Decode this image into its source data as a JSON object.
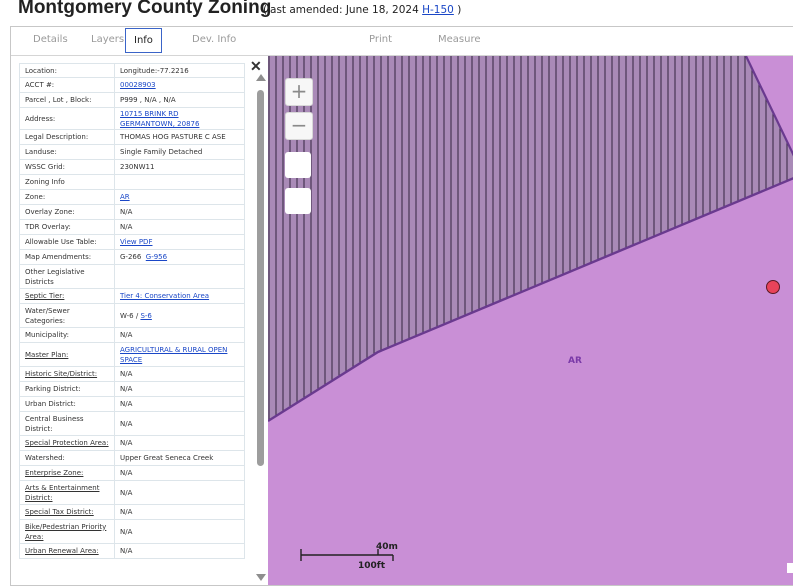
{
  "header": {
    "title": "Montgomery County Zoning",
    "amended_prefix": "(last amended: June 18, 2024",
    "amended_link": "H-150",
    "amended_suffix": ")"
  },
  "tabs": {
    "details": "Details",
    "layers": "Layers",
    "info": "Info",
    "devinfo": "Dev. Info",
    "print": "Print",
    "measure": "Measure"
  },
  "panel": {
    "close": "✕",
    "rows": [
      {
        "k": "Location:",
        "v": "Longitude:-77.2216",
        "link": false
      },
      {
        "k": "ACCT #:",
        "v": "00028903",
        "link": true
      },
      {
        "k": "Parcel , Lot , Block:",
        "v": "P999 , N/A , N/A",
        "link": false
      },
      {
        "k": "Address:",
        "v": "10715 BRINK RD\nGERMANTOWN, 20876",
        "link": true
      },
      {
        "k": "Legal Description:",
        "v": "THOMAS HOG PASTURE C ASE",
        "link": false
      },
      {
        "k": "Landuse:",
        "v": "Single Family Detached",
        "link": false
      },
      {
        "k": "WSSC Grid:",
        "v": "230NW11",
        "link": false
      },
      {
        "k": "Zoning Info",
        "v": "",
        "link": false
      },
      {
        "k": "Zone:",
        "v": "AR",
        "link": true
      },
      {
        "k": "Overlay Zone:",
        "v": "N/A",
        "link": false
      },
      {
        "k": "TDR Overlay:",
        "v": "N/A",
        "link": false
      },
      {
        "k": "Allowable Use Table:",
        "v": "View PDF",
        "link": true
      },
      {
        "k": "Map Amendments:",
        "v": "G-266",
        "v2": "G-956",
        "link": false
      },
      {
        "k": "Other Legislative Districts",
        "v": "",
        "link": false
      },
      {
        "k": "Septic Tier:",
        "v": "Tier 4: Conservation Area",
        "link": true,
        "ku": true
      },
      {
        "k": "Water/Sewer Categories:",
        "v": "W-6",
        "sep": " / ",
        "v2": "S-6",
        "link": false
      },
      {
        "k": "Municipality:",
        "v": "N/A",
        "link": false
      },
      {
        "k": "Master Plan:",
        "v": "AGRICULTURAL & RURAL OPEN SPACE",
        "link": true,
        "ku": true
      },
      {
        "k": "Historic Site/District:",
        "v": "N/A",
        "link": false,
        "ku": true
      },
      {
        "k": "Parking District:",
        "v": "N/A",
        "link": false
      },
      {
        "k": "Urban District:",
        "v": "N/A",
        "link": false
      },
      {
        "k": "Central Business District:",
        "v": "N/A",
        "link": false
      },
      {
        "k": "Special Protection Area:",
        "v": "N/A",
        "link": false,
        "ku": true
      },
      {
        "k": "Watershed:",
        "v": "Upper Great Seneca Creek",
        "link": false
      },
      {
        "k": "Enterprise Zone:",
        "v": "N/A",
        "link": false,
        "ku": true
      },
      {
        "k": "Arts & Entertainment District:",
        "v": "N/A",
        "link": false,
        "ku": true
      },
      {
        "k": "Special Tax District:",
        "v": "N/A",
        "link": false,
        "ku": true
      },
      {
        "k": "Bike/Pedestrian Priority Area:",
        "v": "N/A",
        "link": false,
        "ku": true
      },
      {
        "k": "Urban Renewal Area:",
        "v": "N/A",
        "link": false,
        "ku": true
      }
    ]
  },
  "map": {
    "zoom_in": "+",
    "zoom_out": "−",
    "zone_label": "AR",
    "scale_metric": "40m",
    "scale_imperial": "100ft",
    "zone_color": "#c98fd6",
    "hatch_color": "#a98ab7",
    "marker_color": "#e8435a"
  }
}
